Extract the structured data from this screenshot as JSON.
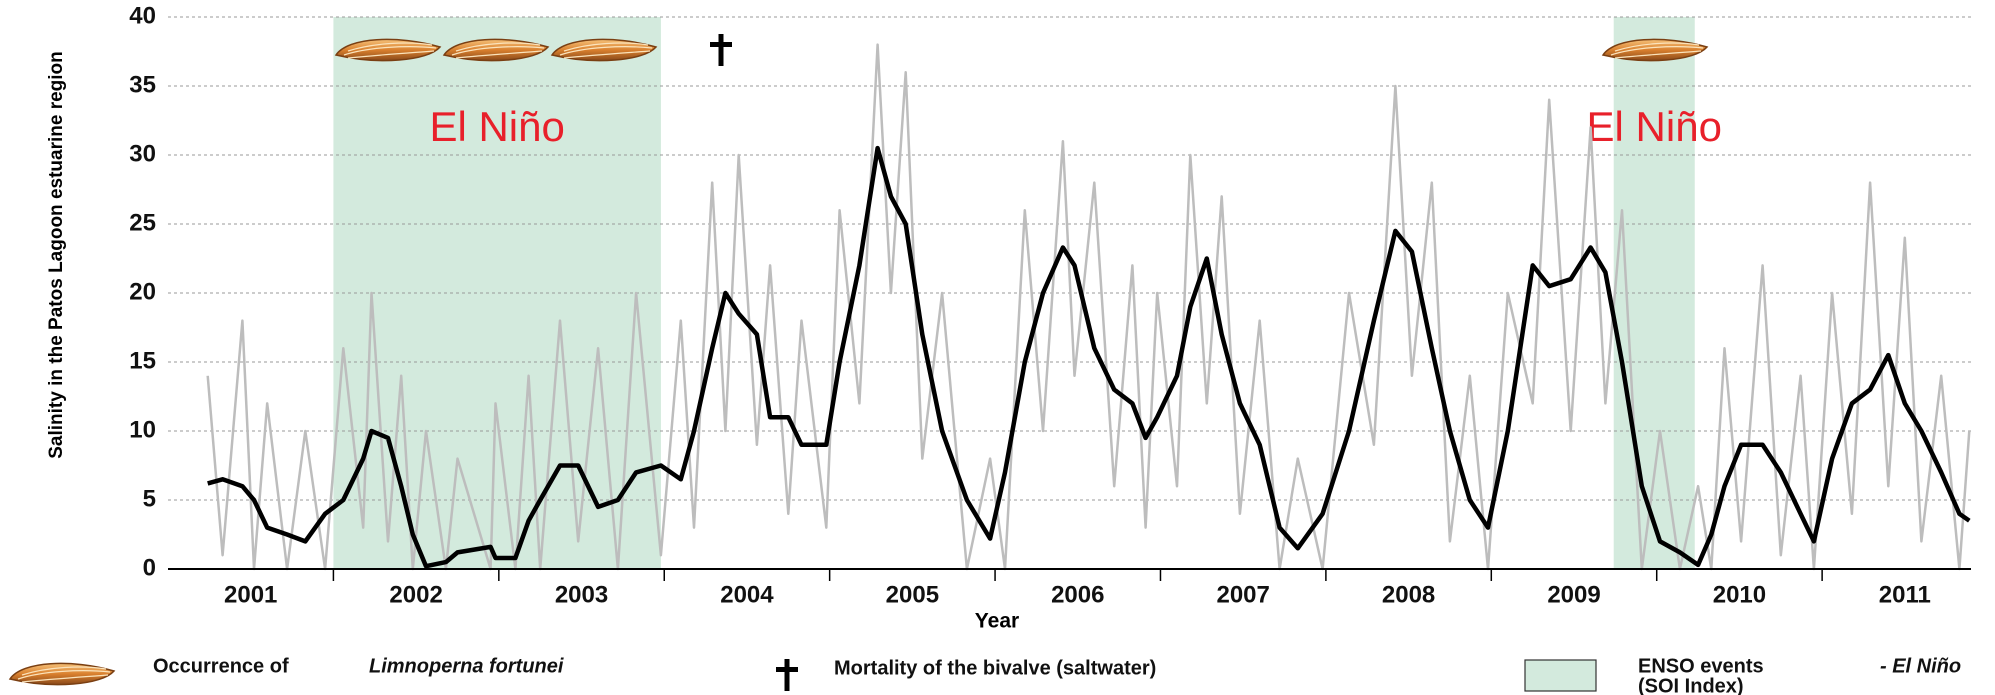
{
  "chart_data": {
    "type": "line",
    "y_label": "Salinity in the Patos Lagoon  estuarine region",
    "x_label": "Year",
    "ylim": [
      0,
      40
    ],
    "yticks": [
      0,
      5,
      10,
      15,
      20,
      25,
      30,
      35,
      40
    ],
    "grid": true,
    "xlim": [
      2001,
      2011.9
    ],
    "xticks": [
      {
        "value": 2001.5,
        "label": "2001"
      },
      {
        "value": 2002.5,
        "label": "2002"
      },
      {
        "value": 2003.5,
        "label": "2003"
      },
      {
        "value": 2004.5,
        "label": "2004"
      },
      {
        "value": 2005.5,
        "label": "2005"
      },
      {
        "value": 2006.5,
        "label": "2006"
      },
      {
        "value": 2007.5,
        "label": "2007"
      },
      {
        "value": 2008.5,
        "label": "2008"
      },
      {
        "value": 2009.5,
        "label": "2009"
      },
      {
        "value": 2010.5,
        "label": "2010"
      },
      {
        "value": 2011.5,
        "label": "2011"
      }
    ],
    "shaded_periods": [
      [
        2002.0,
        2003.98
      ],
      [
        2009.74,
        2010.23
      ]
    ],
    "shaded_color": "#d3eadd",
    "annotation": "El Niño",
    "annotation_color": "#e8202a",
    "x": [
      2001.24,
      2001.33,
      2001.45,
      2001.52,
      2001.6,
      2001.72,
      2001.83,
      2001.95,
      2002.06,
      2002.18,
      2002.23,
      2002.33,
      2002.41,
      2002.48,
      2002.56,
      2002.68,
      2002.75,
      2002.95,
      2002.98,
      2003.1,
      2003.18,
      2003.25,
      2003.37,
      2003.48,
      2003.6,
      2003.72,
      2003.83,
      2003.98,
      2004.1,
      2004.18,
      2004.29,
      2004.37,
      2004.45,
      2004.56,
      2004.64,
      2004.75,
      2004.83,
      2004.98,
      2005.06,
      2005.18,
      2005.29,
      2005.37,
      2005.46,
      2005.56,
      2005.68,
      2005.83,
      2005.97,
      2006.06,
      2006.18,
      2006.29,
      2006.41,
      2006.48,
      2006.6,
      2006.72,
      2006.83,
      2006.91,
      2006.98,
      2007.1,
      2007.18,
      2007.28,
      2007.37,
      2007.48,
      2007.6,
      2007.72,
      2007.83,
      2007.98,
      2008.14,
      2008.29,
      2008.42,
      2008.52,
      2008.64,
      2008.75,
      2008.87,
      2008.98,
      2009.1,
      2009.25,
      2009.35,
      2009.48,
      2009.6,
      2009.69,
      2009.79,
      2009.91,
      2010.02,
      2010.14,
      2010.25,
      2010.33,
      2010.41,
      2010.51,
      2010.64,
      2010.75,
      2010.87,
      2010.95,
      2011.06,
      2011.18,
      2011.29,
      2011.4,
      2011.5,
      2011.6,
      2011.72,
      2011.83,
      2011.89
    ],
    "series": [
      {
        "color": "#bdbdbd",
        "values": [
          14,
          1,
          18,
          0,
          12,
          0,
          10,
          0,
          16,
          3,
          20,
          2,
          14,
          0,
          10,
          0,
          8,
          0,
          12,
          0,
          14,
          0,
          18,
          2,
          16,
          0,
          20,
          1,
          18,
          3,
          28,
          10,
          30,
          9,
          22,
          4,
          18,
          3,
          26,
          12,
          38,
          20,
          36,
          8,
          20,
          0,
          8,
          0,
          26,
          10,
          31,
          14,
          28,
          6,
          22,
          3,
          20,
          6,
          30,
          12,
          27,
          4,
          18,
          0,
          8,
          0,
          20,
          9,
          35,
          14,
          28,
          2,
          14,
          0,
          20,
          12,
          34,
          10,
          32,
          12,
          26,
          0,
          10,
          0,
          6,
          0,
          16,
          2,
          22,
          1,
          14,
          0,
          20,
          4,
          28,
          6,
          24,
          2,
          14,
          0,
          10
        ]
      },
      {
        "color": "#000000",
        "values": [
          6.2,
          6.5,
          6,
          5,
          3,
          2.5,
          2,
          4,
          5,
          8,
          10,
          9.5,
          6,
          2.5,
          0.2,
          0.5,
          1.2,
          1.6,
          0.8,
          0.8,
          3.5,
          5,
          7.5,
          7.5,
          4.5,
          5,
          7,
          7.5,
          6.5,
          10,
          16,
          20,
          18.5,
          17,
          11,
          11,
          9,
          9,
          15,
          22,
          30.5,
          27,
          25,
          17,
          10,
          5,
          2.2,
          7,
          15,
          20,
          23.3,
          22,
          16,
          13,
          12,
          9.5,
          11,
          14,
          19,
          22.5,
          17,
          12,
          9,
          3,
          1.5,
          4,
          10,
          18,
          24.5,
          23,
          16,
          10,
          5,
          3,
          10,
          22,
          20.5,
          21,
          23.3,
          21.5,
          15,
          6,
          2,
          1.2,
          0.3,
          2.5,
          6,
          9,
          9,
          7,
          4,
          2,
          8,
          12,
          13,
          15.5,
          12,
          10,
          7,
          4,
          3.5
        ]
      }
    ],
    "legend": {
      "occurrence": "Occurrence of",
      "species": "Limnoperna fortunei",
      "mortality": "Mortality of the  bivalve (saltwater)",
      "enso": "ENSO events",
      "enso_italic": "- El Niño",
      "soi": "(SOI Index)"
    }
  }
}
